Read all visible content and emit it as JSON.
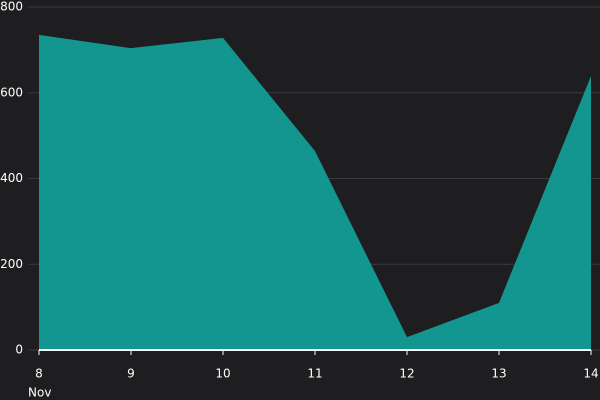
{
  "chart_data": {
    "type": "area",
    "categories": [
      "8",
      "9",
      "10",
      "11",
      "12",
      "13",
      "14"
    ],
    "x_period_label": "Nov",
    "values": [
      735,
      704,
      728,
      464,
      30,
      110,
      639
    ],
    "color": "#13968f",
    "ylim": [
      0,
      800
    ],
    "yticks": [
      0,
      200,
      400,
      600,
      800
    ],
    "grid": true
  }
}
